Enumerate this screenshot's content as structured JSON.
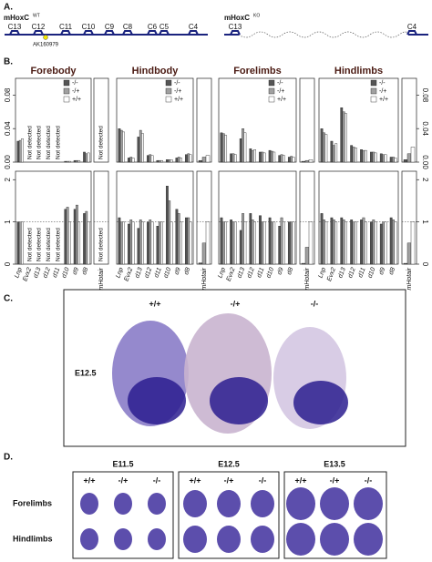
{
  "panel_a": {
    "label": "A.",
    "wt": {
      "title": "mHoxC",
      "sup": "WT",
      "genes": [
        "C13",
        "C12",
        "C11",
        "C10",
        "C9",
        "C8",
        "C6",
        "C5",
        "C4"
      ],
      "lncrna": "AK160979"
    },
    "ko": {
      "title": "mHoxC",
      "sup": "KO",
      "genes": [
        "C13",
        "C4"
      ]
    }
  },
  "panel_b": {
    "label": "B.",
    "legend": [
      "-/-",
      "-/+",
      "+/+"
    ],
    "colors": [
      "#555555",
      "#a0a0a0",
      "#ffffff"
    ],
    "genes": [
      "Lnp",
      "Evx2",
      "d13",
      "d12",
      "d11",
      "d10",
      "d9",
      "d8"
    ],
    "hotair_label": "mHotair",
    "not_detected": "Not detected",
    "top_ylim": [
      0,
      0.1
    ],
    "top_yticks": [
      {
        "value": 0,
        "label": "0.00"
      },
      {
        "value": 0.04,
        "label": "0.04"
      },
      {
        "value": 0.08,
        "label": "0.08"
      }
    ],
    "bottom_ylim": [
      0,
      2.2
    ],
    "bottom_yticks": [
      0,
      1,
      2
    ],
    "reference": 1,
    "groups": [
      {
        "title": "Forebody",
        "top": [
          [
            0.025,
            0.026,
            0.028
          ],
          null,
          null,
          null,
          null,
          [
            0.001,
            0.001,
            0.001
          ],
          [
            0.002,
            0.002,
            0.002
          ],
          [
            0.012,
            0.01,
            0.011
          ]
        ],
        "top_hotair": null,
        "bottom": [
          [
            1,
            1,
            1
          ],
          null,
          null,
          null,
          null,
          [
            1.3,
            1.35,
            1
          ],
          [
            1.3,
            1.4,
            1
          ],
          [
            1.2,
            1.25,
            1
          ]
        ],
        "bottom_hotair": null
      },
      {
        "title": "Hindbody",
        "top": [
          [
            0.04,
            0.038,
            0.036
          ],
          [
            0.005,
            0.006,
            0.005
          ],
          [
            0.03,
            0.038,
            0.034
          ],
          [
            0.008,
            0.009,
            0.008
          ],
          [
            0.002,
            0.002,
            0.002
          ],
          [
            0.003,
            0.003,
            0.003
          ],
          [
            0.005,
            0.006,
            0.005
          ],
          [
            0.009,
            0.01,
            0.009
          ]
        ],
        "top_hotair": [
          0.002,
          0.006,
          0.008
        ],
        "bottom": [
          [
            1.1,
            1,
            1
          ],
          [
            0.95,
            1.05,
            1
          ],
          [
            0.85,
            1.05,
            1
          ],
          [
            1,
            1.05,
            1
          ],
          [
            0.9,
            1,
            1
          ],
          [
            1.85,
            1.5,
            1
          ],
          [
            1.3,
            1.2,
            1
          ],
          [
            1.1,
            1.1,
            1
          ]
        ],
        "bottom_hotair": [
          0.03,
          0.5,
          1
        ]
      },
      {
        "title": "Forelimbs",
        "top": [
          [
            0.035,
            0.034,
            0.032
          ],
          [
            0.01,
            0.01,
            0.009
          ],
          [
            0.028,
            0.04,
            0.035
          ],
          [
            0.016,
            0.014,
            0.015
          ],
          [
            0.012,
            0.012,
            0.011
          ],
          [
            0.014,
            0.013,
            0.012
          ],
          [
            0.008,
            0.009,
            0.008
          ],
          [
            0.006,
            0.007,
            0.006
          ]
        ],
        "top_hotair": [
          0.001,
          0.002,
          0.003
        ],
        "bottom": [
          [
            1.1,
            1,
            1
          ],
          [
            1.05,
            1,
            1
          ],
          [
            0.8,
            1.2,
            1
          ],
          [
            1.2,
            1.05,
            1
          ],
          [
            1.15,
            1,
            1
          ],
          [
            1.1,
            1,
            1
          ],
          [
            0.9,
            1.1,
            1
          ],
          [
            1,
            1,
            1
          ]
        ],
        "bottom_hotair": [
          0.02,
          0.4,
          1
        ]
      },
      {
        "title": "Hindlimbs",
        "top": [
          [
            0.04,
            0.035,
            0.033
          ],
          [
            0.025,
            0.02,
            0.022
          ],
          [
            0.065,
            0.06,
            0.058
          ],
          [
            0.02,
            0.018,
            0.017
          ],
          [
            0.015,
            0.014,
            0.014
          ],
          [
            0.012,
            0.012,
            0.011
          ],
          [
            0.01,
            0.009,
            0.009
          ],
          [
            0.006,
            0.006,
            0.005
          ]
        ],
        "top_hotair": [
          0.003,
          0.01,
          0.018
        ],
        "bottom": [
          [
            1.2,
            1.05,
            1
          ],
          [
            1.1,
            1.05,
            1
          ],
          [
            1.1,
            1.05,
            1
          ],
          [
            1.05,
            1,
            1
          ],
          [
            1.05,
            1.1,
            1
          ],
          [
            1,
            1.05,
            1
          ],
          [
            0.95,
            1,
            1
          ],
          [
            1.1,
            1.05,
            1
          ]
        ],
        "bottom_hotair": [
          0.02,
          0.5,
          1
        ]
      }
    ]
  },
  "panel_c": {
    "label": "C.",
    "genotypes": [
      "+/+",
      "-/+",
      "-/-"
    ],
    "stage": "E12.5"
  },
  "panel_d": {
    "label": "D.",
    "genotypes": [
      "+/+",
      "-/+",
      "-/-"
    ],
    "stages": [
      "E11.5",
      "E12.5",
      "E13.5"
    ],
    "rows": [
      "Forelimbs",
      "Hindlimbs"
    ]
  }
}
